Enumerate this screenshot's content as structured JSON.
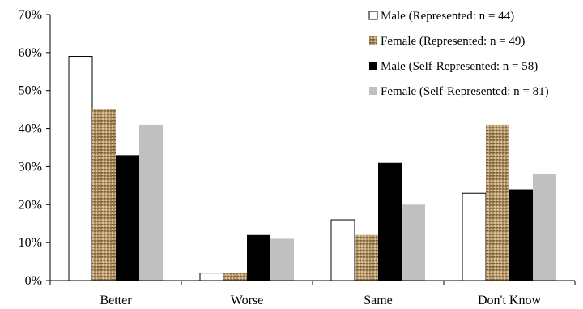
{
  "chart_data": {
    "type": "bar",
    "title": "",
    "xlabel": "",
    "ylabel": "",
    "ylim": [
      0,
      70
    ],
    "y_ticks": [
      "0%",
      "10%",
      "20%",
      "30%",
      "40%",
      "50%",
      "60%",
      "70%"
    ],
    "grid": false,
    "legend_position": "top-right",
    "categories": [
      "Better",
      "Worse",
      "Same",
      "Don't Know"
    ],
    "series": [
      {
        "name": "Male (Represented: n = 44)",
        "values": [
          59,
          2,
          16,
          23
        ],
        "style": "white-outline",
        "color": "#ffffff"
      },
      {
        "name": "Female (Represented: n = 49)",
        "values": [
          45,
          2,
          12,
          41
        ],
        "style": "burlap-texture",
        "color": "#b89a6a"
      },
      {
        "name": "Male (Self-Represented: n = 58)",
        "values": [
          33,
          12,
          31,
          24
        ],
        "style": "solid",
        "color": "#000000"
      },
      {
        "name": "Female (Self-Represented: n = 81)",
        "values": [
          41,
          11,
          20,
          28
        ],
        "style": "solid",
        "color": "#c0c0c0"
      }
    ]
  }
}
